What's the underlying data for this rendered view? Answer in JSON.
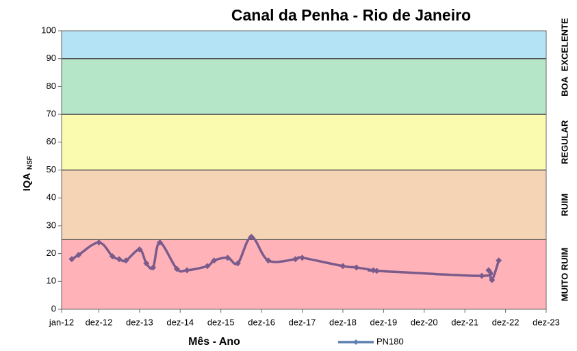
{
  "chart_data": {
    "type": "line",
    "title": "Canal da Penha - Rio de Janeiro",
    "x_label": "Mês - Ano",
    "y_label": "IQA",
    "y_label_sub": "NSF",
    "x": [
      "2012-04",
      "2012-06",
      "2012-12",
      "2013-04",
      "2013-06",
      "2013-08",
      "2013-12",
      "2014-02",
      "2014-04",
      "2014-06",
      "2014-11",
      "2015-02",
      "2015-08",
      "2015-10",
      "2016-02",
      "2016-05",
      "2016-09",
      "2017-02",
      "2017-10",
      "2017-12",
      "2018-12",
      "2019-04",
      "2019-09",
      "2019-10",
      "2022-05",
      "2022-07",
      "2022-08",
      "2022-10"
    ],
    "series": [
      {
        "name": "PN180",
        "color": "#7b5b8c",
        "marker_color": "#7b5b8c",
        "legend_color": "#5b7fb0",
        "values": [
          18,
          19.5,
          24,
          19,
          18,
          17.5,
          21.5,
          16.5,
          15,
          24,
          14.5,
          14,
          15.5,
          17.5,
          18.5,
          16.5,
          26,
          17.5,
          18,
          18.5,
          15.5,
          15,
          14,
          13.8,
          12,
          14,
          10.5,
          17.5
        ]
      }
    ],
    "xlim": [
      "2012-01",
      "2023-12"
    ],
    "xticks": [
      {
        "value": "2012-01",
        "label": "jan-12"
      },
      {
        "value": "2012-12",
        "label": "dez-12"
      },
      {
        "value": "2013-12",
        "label": "dez-13"
      },
      {
        "value": "2014-12",
        "label": "dez-14"
      },
      {
        "value": "2015-12",
        "label": "dez-15"
      },
      {
        "value": "2016-12",
        "label": "dez-16"
      },
      {
        "value": "2017-12",
        "label": "dez-17"
      },
      {
        "value": "2018-12",
        "label": "dez-18"
      },
      {
        "value": "2019-12",
        "label": "dez-19"
      },
      {
        "value": "2020-12",
        "label": "dez-20"
      },
      {
        "value": "2021-12",
        "label": "dez-21"
      },
      {
        "value": "2022-12",
        "label": "dez-22"
      },
      {
        "value": "2023-12",
        "label": "dez-23"
      }
    ],
    "ylim": [
      0,
      100
    ],
    "yticks": [
      0,
      10,
      20,
      30,
      40,
      50,
      60,
      70,
      80,
      90,
      100
    ],
    "bands": [
      {
        "from": 0,
        "to": 25,
        "label": "MUITO RUIM",
        "color": "#ffb3b8"
      },
      {
        "from": 25,
        "to": 50,
        "label": "RUIM",
        "color": "#f5d3b5"
      },
      {
        "from": 50,
        "to": 70,
        "label": "REGULAR",
        "color": "#fbfbb0"
      },
      {
        "from": 70,
        "to": 90,
        "label": "BOA",
        "color": "#b5e6c8"
      },
      {
        "from": 90,
        "to": 100,
        "label": "EXCELENTE",
        "color": "#b5e3f6"
      }
    ],
    "legend_position": "bottom"
  }
}
